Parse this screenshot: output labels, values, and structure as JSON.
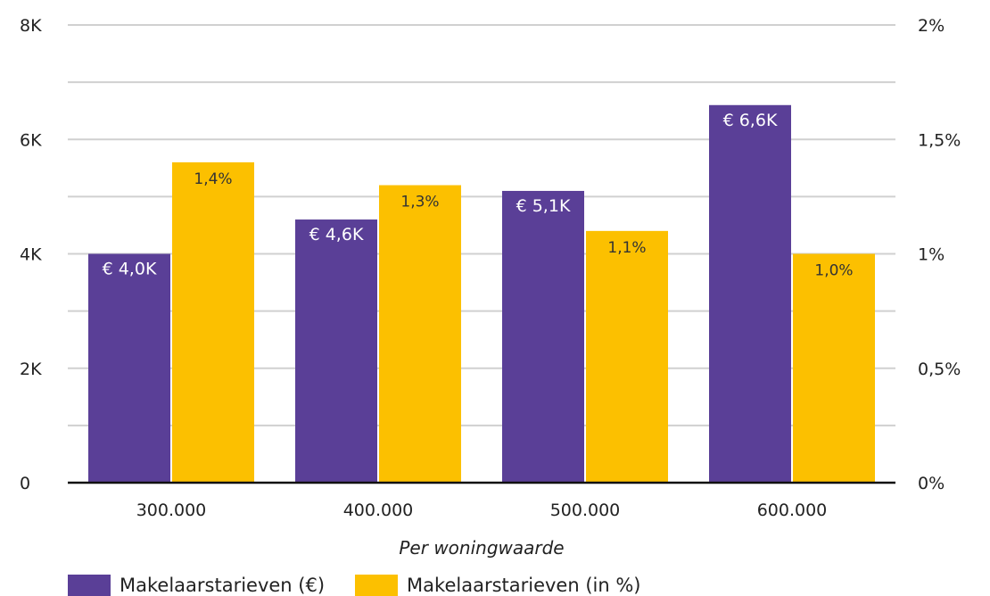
{
  "chart_data": {
    "type": "bar",
    "xlabel": "Per woningwaarde",
    "categories": [
      "300.000",
      "400.000",
      "500.000",
      "600.000"
    ],
    "series": [
      {
        "name": "Makelaarstarieven (€)",
        "axis": "left",
        "color": "#5a3f97",
        "values": [
          4000,
          4600,
          5100,
          6600
        ],
        "labels": [
          "€ 4,0K",
          "€ 4,6K",
          "€ 5,1K",
          "€ 6,6K"
        ]
      },
      {
        "name": "Makelaarstarieven (in %)",
        "axis": "right",
        "color": "#fcc000",
        "values": [
          1.4,
          1.3,
          1.1,
          1.0
        ],
        "labels": [
          "1,4%",
          "1,3%",
          "1,1%",
          "1,0%"
        ]
      }
    ],
    "y_left": {
      "ylim": [
        0,
        8000
      ],
      "ticks": [
        0,
        2000,
        4000,
        6000,
        8000
      ],
      "tick_labels": [
        "0",
        "2K",
        "4K",
        "6K",
        "8K"
      ]
    },
    "y_right": {
      "ylim": [
        0,
        2
      ],
      "ticks": [
        0,
        0.5,
        1,
        1.5,
        2
      ],
      "tick_labels": [
        "0%",
        "0,5%",
        "1%",
        "1,5%",
        "2%"
      ]
    },
    "grid": true,
    "legend_position": "bottom-left"
  }
}
